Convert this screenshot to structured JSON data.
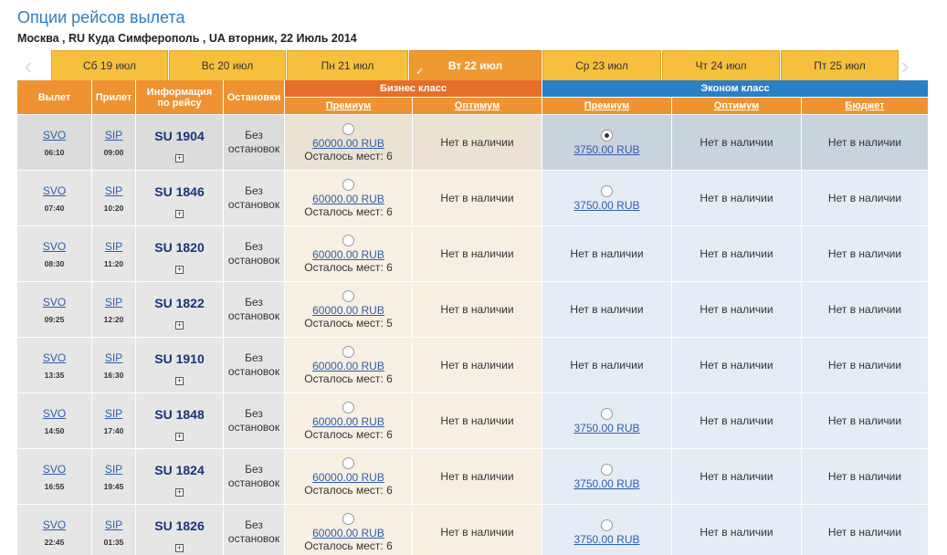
{
  "page": {
    "title": "Опции рейсов вылета",
    "route": "Москва , RU Куда Симферополь , UA вторник, 22 Июль 2014"
  },
  "icons": {
    "prev": "chevron-left-icon",
    "next": "chevron-right-icon",
    "check": "check-icon",
    "expand": "plus-icon"
  },
  "date_tabs": [
    {
      "label": "Сб 19 июл",
      "active": false
    },
    {
      "label": "Вс 20 июл",
      "active": false
    },
    {
      "label": "Пн 21 июл",
      "active": false
    },
    {
      "label": "Вт 22 июл",
      "active": true
    },
    {
      "label": "Ср 23 июл",
      "active": false
    },
    {
      "label": "Чт 24 июл",
      "active": false
    },
    {
      "label": "Пт 25 июл",
      "active": false
    }
  ],
  "headers": {
    "departure": "Вылет",
    "arrival": "Прилет",
    "info_line1": "Информация",
    "info_line2": "по рейсу",
    "stops": "Остановки",
    "business": "Бизнес класс",
    "economy": "Эконом класс",
    "biz_premium": "Премиум",
    "biz_optimum": "Оптимум",
    "eco_premium": "Премиум",
    "eco_optimum": "Оптимум",
    "eco_budget": "Бюджет"
  },
  "flights": [
    {
      "dep": "SVO",
      "dep_time": "06:10",
      "arr": "SIP",
      "arr_time": "09:00",
      "flight": "SU  1904",
      "stops1": "Без",
      "stops2": "остановок",
      "biz_price": "60000.00 RUB",
      "biz_seats": "Осталось мест: 6",
      "biz_opt": "Нет в наличии",
      "eco_prem": "3750.00 RUB",
      "eco_prem_available": true,
      "eco_opt": "Нет в наличии",
      "eco_budget": "Нет в наличии",
      "selected": true
    },
    {
      "dep": "SVO",
      "dep_time": "07:40",
      "arr": "SIP",
      "arr_time": "10:20",
      "flight": "SU  1846",
      "stops1": "Без",
      "stops2": "остановок",
      "biz_price": "60000.00 RUB",
      "biz_seats": "Осталось мест: 6",
      "biz_opt": "Нет в наличии",
      "eco_prem": "3750.00 RUB",
      "eco_prem_available": true,
      "eco_opt": "Нет в наличии",
      "eco_budget": "Нет в наличии",
      "selected": false
    },
    {
      "dep": "SVO",
      "dep_time": "08:30",
      "arr": "SIP",
      "arr_time": "11:20",
      "flight": "SU  1820",
      "stops1": "Без",
      "stops2": "остановок",
      "biz_price": "60000.00 RUB",
      "biz_seats": "Осталось мест: 6",
      "biz_opt": "Нет в наличии",
      "eco_prem": "Нет в наличии",
      "eco_prem_available": false,
      "eco_opt": "Нет в наличии",
      "eco_budget": "Нет в наличии",
      "selected": false
    },
    {
      "dep": "SVO",
      "dep_time": "09:25",
      "arr": "SIP",
      "arr_time": "12:20",
      "flight": "SU  1822",
      "stops1": "Без",
      "stops2": "остановок",
      "biz_price": "60000.00 RUB",
      "biz_seats": "Осталось мест: 5",
      "biz_opt": "Нет в наличии",
      "eco_prem": "Нет в наличии",
      "eco_prem_available": false,
      "eco_opt": "Нет в наличии",
      "eco_budget": "Нет в наличии",
      "selected": false
    },
    {
      "dep": "SVO",
      "dep_time": "13:35",
      "arr": "SIP",
      "arr_time": "16:30",
      "flight": "SU  1910",
      "stops1": "Без",
      "stops2": "остановок",
      "biz_price": "60000.00 RUB",
      "biz_seats": "Осталось мест: 6",
      "biz_opt": "Нет в наличии",
      "eco_prem": "Нет в наличии",
      "eco_prem_available": false,
      "eco_opt": "Нет в наличии",
      "eco_budget": "Нет в наличии",
      "selected": false
    },
    {
      "dep": "SVO",
      "dep_time": "14:50",
      "arr": "SIP",
      "arr_time": "17:40",
      "flight": "SU  1848",
      "stops1": "Без",
      "stops2": "остановок",
      "biz_price": "60000.00 RUB",
      "biz_seats": "Осталось мест: 6",
      "biz_opt": "Нет в наличии",
      "eco_prem": "3750.00 RUB",
      "eco_prem_available": true,
      "eco_opt": "Нет в наличии",
      "eco_budget": "Нет в наличии",
      "selected": false
    },
    {
      "dep": "SVO",
      "dep_time": "16:55",
      "arr": "SIP",
      "arr_time": "19:45",
      "flight": "SU  1824",
      "stops1": "Без",
      "stops2": "остановок",
      "biz_price": "60000.00 RUB",
      "biz_seats": "Осталось мест: 6",
      "biz_opt": "Нет в наличии",
      "eco_prem": "3750.00 RUB",
      "eco_prem_available": true,
      "eco_opt": "Нет в наличии",
      "eco_budget": "Нет в наличии",
      "selected": false
    },
    {
      "dep": "SVO",
      "dep_time": "22:45",
      "arr": "SIP",
      "arr_time": "01:35",
      "flight": "SU  1826",
      "stops1": "Без",
      "stops2": "остановок",
      "biz_price": "60000.00 RUB",
      "biz_seats": "Осталось мест: 6",
      "biz_opt": "Нет в наличии",
      "eco_prem": "3750.00 RUB",
      "eco_prem_available": true,
      "eco_opt": "Нет в наличии",
      "eco_budget": "Нет в наличии",
      "selected": false
    }
  ]
}
